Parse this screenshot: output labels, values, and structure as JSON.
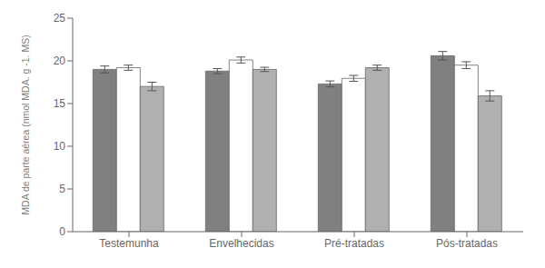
{
  "chart_data": {
    "type": "bar",
    "ylabel": "MDA de parte aérea (nmol MDA. g -1. MS)",
    "categories": [
      "Testemunha",
      "Envelhecidas",
      "Pré-tratadas",
      "Pós-tratadas"
    ],
    "series": [
      {
        "color": "#808080",
        "values": [
          19.0,
          18.8,
          17.3,
          20.6
        ],
        "errors": [
          0.4,
          0.3,
          0.35,
          0.5
        ]
      },
      {
        "color": "#ffffff",
        "values": [
          19.2,
          20.1,
          17.95,
          19.5
        ],
        "errors": [
          0.3,
          0.35,
          0.35,
          0.4
        ]
      },
      {
        "color": "#b0b0b0",
        "values": [
          17.0,
          19.0,
          19.2,
          15.9
        ],
        "errors": [
          0.5,
          0.25,
          0.3,
          0.6
        ]
      }
    ],
    "ylim": [
      0,
      25
    ],
    "yticks": [
      0,
      5,
      10,
      15,
      20,
      25
    ],
    "grid": false
  }
}
